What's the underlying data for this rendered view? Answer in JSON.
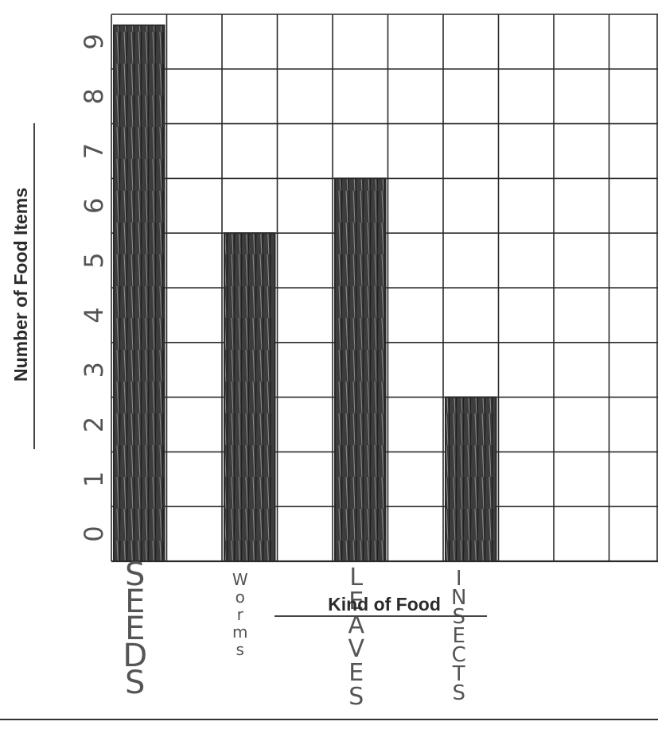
{
  "chart_data": {
    "type": "bar",
    "title": "",
    "xlabel": "Kind of Food",
    "ylabel": "Number of Food Items",
    "categories": [
      "SEEDS",
      "Worms",
      "LEAVES",
      "INSECTS"
    ],
    "values": [
      9.8,
      6,
      7,
      3
    ],
    "ylim": [
      0,
      10
    ],
    "yticks": [
      "0",
      "1",
      "2",
      "3",
      "4",
      "5",
      "6",
      "7",
      "8",
      "9"
    ],
    "grid": true,
    "legend": "none",
    "colors": {
      "bar": "#3d3d3d",
      "grid": "#2a2a2a",
      "hand_text": "#555555",
      "label_text": "#2b2b2b"
    }
  }
}
